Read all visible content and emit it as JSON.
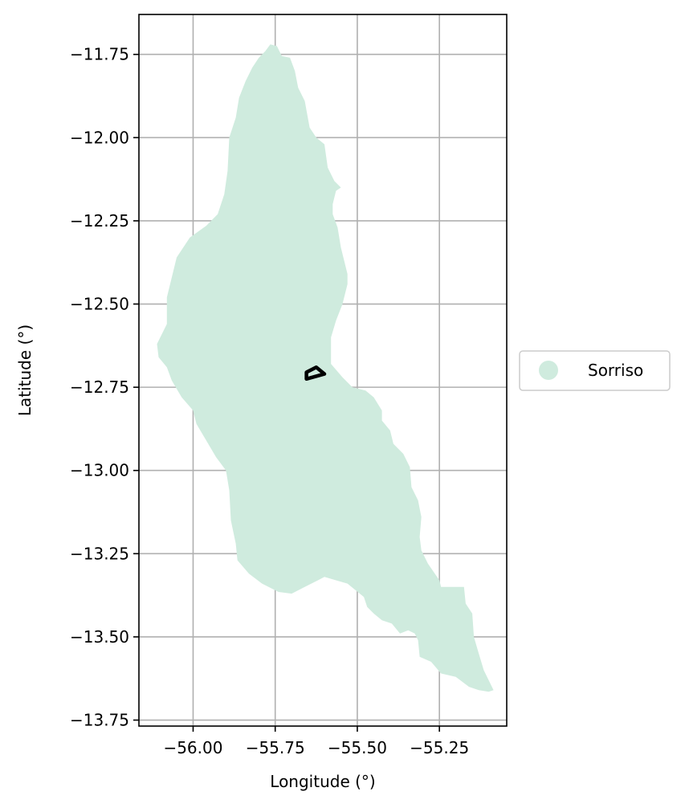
{
  "chart_data": {
    "type": "map",
    "xlabel": "Longitude (°)",
    "ylabel": "Latitude (°)",
    "xlim": [
      -56.165,
      -55.045
    ],
    "ylim": [
      -13.768,
      -11.63
    ],
    "grid": true,
    "legend_placement": "center-right-outside",
    "x_ticks": [
      {
        "value": -56.0,
        "label": "−56.00"
      },
      {
        "value": -55.75,
        "label": "−55.75"
      },
      {
        "value": -55.5,
        "label": "−55.50"
      },
      {
        "value": -55.25,
        "label": "−55.25"
      }
    ],
    "y_ticks": [
      {
        "value": -11.75,
        "label": "−11.75"
      },
      {
        "value": -12.0,
        "label": "−12.00"
      },
      {
        "value": -12.25,
        "label": "−12.25"
      },
      {
        "value": -12.5,
        "label": "−12.50"
      },
      {
        "value": -12.75,
        "label": "−12.75"
      },
      {
        "value": -13.0,
        "label": "−13.00"
      },
      {
        "value": -13.25,
        "label": "−13.25"
      },
      {
        "value": -13.5,
        "label": "−13.50"
      },
      {
        "value": -13.75,
        "label": "−13.75"
      }
    ],
    "region": {
      "name": "Sorriso",
      "color": "#cfebde",
      "boundary": [
        [
          -55.765,
          -11.72
        ],
        [
          -55.745,
          -11.725
        ],
        [
          -55.73,
          -11.755
        ],
        [
          -55.705,
          -11.76
        ],
        [
          -55.69,
          -11.8
        ],
        [
          -55.68,
          -11.85
        ],
        [
          -55.66,
          -11.89
        ],
        [
          -55.645,
          -11.97
        ],
        [
          -55.625,
          -12.0
        ],
        [
          -55.6,
          -12.02
        ],
        [
          -55.59,
          -12.09
        ],
        [
          -55.57,
          -12.13
        ],
        [
          -55.55,
          -12.15
        ],
        [
          -55.565,
          -12.16
        ],
        [
          -55.575,
          -12.2
        ],
        [
          -55.575,
          -12.23
        ],
        [
          -55.56,
          -12.27
        ],
        [
          -55.55,
          -12.33
        ],
        [
          -55.53,
          -12.41
        ],
        [
          -55.53,
          -12.44
        ],
        [
          -55.545,
          -12.5
        ],
        [
          -55.565,
          -12.55
        ],
        [
          -55.58,
          -12.6
        ],
        [
          -55.58,
          -12.68
        ],
        [
          -55.545,
          -12.72
        ],
        [
          -55.515,
          -12.75
        ],
        [
          -55.475,
          -12.76
        ],
        [
          -55.45,
          -12.78
        ],
        [
          -55.425,
          -12.82
        ],
        [
          -55.425,
          -12.85
        ],
        [
          -55.4,
          -12.88
        ],
        [
          -55.39,
          -12.92
        ],
        [
          -55.36,
          -12.95
        ],
        [
          -55.34,
          -12.99
        ],
        [
          -55.335,
          -13.05
        ],
        [
          -55.315,
          -13.09
        ],
        [
          -55.305,
          -13.14
        ],
        [
          -55.31,
          -13.2
        ],
        [
          -55.305,
          -13.24
        ],
        [
          -55.285,
          -13.28
        ],
        [
          -55.25,
          -13.33
        ],
        [
          -55.245,
          -13.35
        ],
        [
          -55.175,
          -13.35
        ],
        [
          -55.17,
          -13.4
        ],
        [
          -55.15,
          -13.43
        ],
        [
          -55.145,
          -13.5
        ],
        [
          -55.13,
          -13.55
        ],
        [
          -55.115,
          -13.6
        ],
        [
          -55.085,
          -13.66
        ],
        [
          -55.1,
          -13.665
        ],
        [
          -55.13,
          -13.66
        ],
        [
          -55.16,
          -13.65
        ],
        [
          -55.2,
          -13.62
        ],
        [
          -55.245,
          -13.61
        ],
        [
          -55.275,
          -13.575
        ],
        [
          -55.31,
          -13.56
        ],
        [
          -55.315,
          -13.51
        ],
        [
          -55.325,
          -13.49
        ],
        [
          -55.345,
          -13.48
        ],
        [
          -55.37,
          -13.49
        ],
        [
          -55.395,
          -13.46
        ],
        [
          -55.425,
          -13.45
        ],
        [
          -55.45,
          -13.43
        ],
        [
          -55.47,
          -13.41
        ],
        [
          -55.48,
          -13.38
        ],
        [
          -55.53,
          -13.34
        ],
        [
          -55.565,
          -13.33
        ],
        [
          -55.6,
          -13.32
        ],
        [
          -55.62,
          -13.33
        ],
        [
          -55.66,
          -13.35
        ],
        [
          -55.7,
          -13.37
        ],
        [
          -55.74,
          -13.365
        ],
        [
          -55.79,
          -13.34
        ],
        [
          -55.83,
          -13.31
        ],
        [
          -55.865,
          -13.27
        ],
        [
          -55.87,
          -13.22
        ],
        [
          -55.885,
          -13.15
        ],
        [
          -55.89,
          -13.06
        ],
        [
          -55.9,
          -13.0
        ],
        [
          -55.93,
          -12.96
        ],
        [
          -55.96,
          -12.91
        ],
        [
          -55.99,
          -12.86
        ],
        [
          -56.0,
          -12.82
        ],
        [
          -56.035,
          -12.78
        ],
        [
          -56.065,
          -12.73
        ],
        [
          -56.08,
          -12.69
        ],
        [
          -56.105,
          -12.66
        ],
        [
          -56.11,
          -12.62
        ],
        [
          -56.08,
          -12.56
        ],
        [
          -56.08,
          -12.48
        ],
        [
          -56.065,
          -12.42
        ],
        [
          -56.05,
          -12.36
        ],
        [
          -56.01,
          -12.3
        ],
        [
          -55.96,
          -12.265
        ],
        [
          -55.925,
          -12.23
        ],
        [
          -55.905,
          -12.17
        ],
        [
          -55.895,
          -12.1
        ],
        [
          -55.89,
          -12.0
        ],
        [
          -55.87,
          -11.94
        ],
        [
          -55.86,
          -11.88
        ],
        [
          -55.84,
          -11.83
        ],
        [
          -55.82,
          -11.79
        ],
        [
          -55.8,
          -11.76
        ],
        [
          -55.78,
          -11.74
        ]
      ]
    },
    "marker": {
      "stroke_color": "#000000",
      "shape": [
        [
          -55.655,
          -12.705
        ],
        [
          -55.625,
          -12.69
        ],
        [
          -55.6,
          -12.71
        ],
        [
          -55.655,
          -12.725
        ]
      ]
    },
    "legend": [
      {
        "label": "Sorriso",
        "color": "#cfebde",
        "symbol": "circle"
      }
    ]
  }
}
